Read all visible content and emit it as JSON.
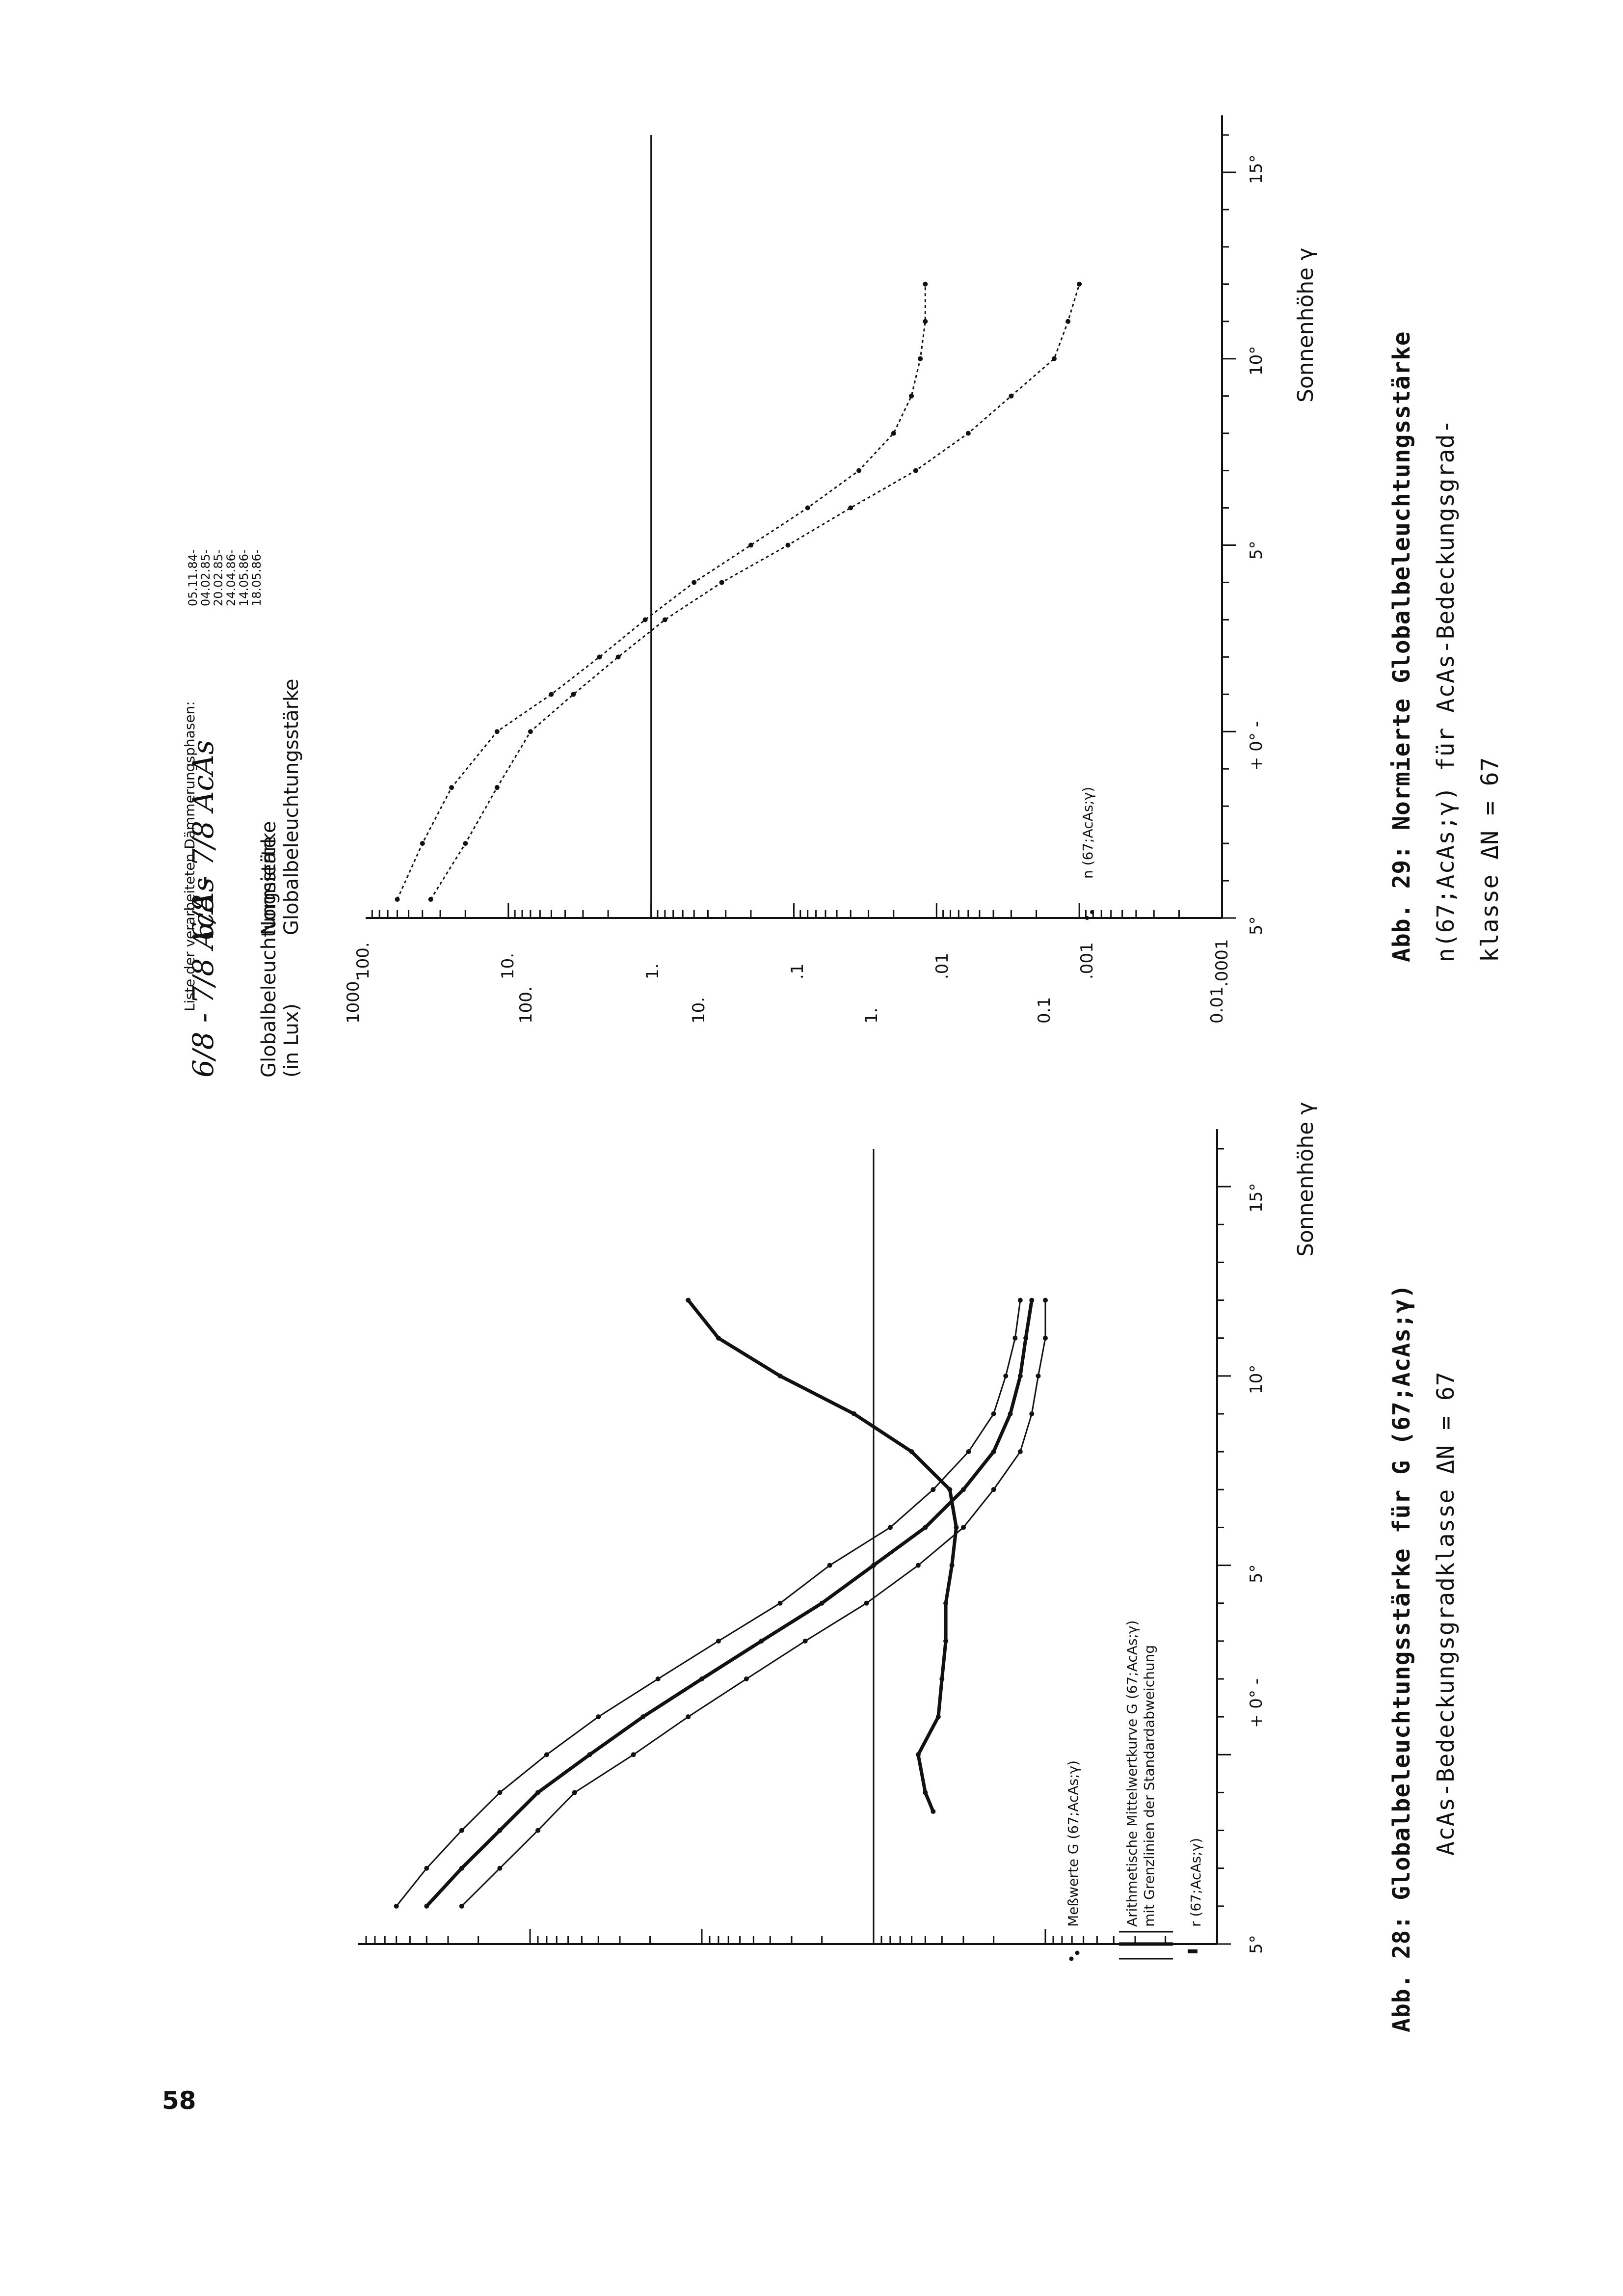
{
  "page_number": "58",
  "chart_data": [
    {
      "type": "line",
      "header": "6/8 - 7/8 AcAs",
      "ylabel_lines": [
        "Globalbeleuchtungsstärke",
        "(in Lux)"
      ],
      "xlabel": "Sonnenhöhe γ",
      "yscale": "log",
      "ylim": [
        0.01,
        1000
      ],
      "yticks": [
        "1000.",
        "100.",
        "10.",
        "1.",
        "0.1",
        "0.01"
      ],
      "xlim": [
        -5,
        16
      ],
      "xticks": [
        "5°",
        "+ 0° -",
        "5°",
        "10°",
        "15°"
      ],
      "reference_line_y": 1,
      "list_title": "Liste der verarbeiteten Dämmerungsphasen:",
      "list_dates": [
        "05.11.84-",
        "04.02.85-",
        "20.02.85-",
        "24.04.86-",
        "14.05.86-",
        "18.05.86-"
      ],
      "legend": [
        {
          "symbol": "dots",
          "text": "Meßwerte G (67;AcAs;γ)"
        },
        {
          "symbol": "lines",
          "text": "Arithmetische Mittelwertkurve G (67;AcAs;γ)"
        },
        {
          "symbol": "",
          "text": "mit Grenzlinien der Standardabweichung"
        },
        {
          "symbol": "thick",
          "text": "r (67;AcAs;γ)"
        }
      ],
      "series": [
        {
          "name": "mean",
          "x": [
            -4,
            -3,
            -2,
            -1,
            0,
            1,
            2,
            3,
            4,
            5,
            6,
            7,
            8,
            9,
            10,
            11,
            12
          ],
          "y": [
            400,
            250,
            150,
            90,
            45,
            22,
            10,
            4.5,
            2,
            1,
            0.5,
            0.3,
            0.2,
            0.16,
            0.14,
            0.13,
            0.12
          ]
        },
        {
          "name": "upper",
          "x": [
            -4,
            -3,
            -2,
            -1,
            0,
            1,
            2,
            3,
            4,
            5,
            6,
            7,
            8,
            9,
            10,
            11,
            12
          ],
          "y": [
            600,
            400,
            250,
            150,
            80,
            40,
            18,
            8,
            3.5,
            1.8,
            0.8,
            0.45,
            0.28,
            0.2,
            0.17,
            0.15,
            0.14
          ]
        },
        {
          "name": "lower",
          "x": [
            -4,
            -3,
            -2,
            -1,
            0,
            1,
            2,
            3,
            4,
            5,
            6,
            7,
            8,
            9,
            10,
            11,
            12
          ],
          "y": [
            250,
            150,
            90,
            55,
            25,
            12,
            5.5,
            2.5,
            1.1,
            0.55,
            0.3,
            0.2,
            0.14,
            0.12,
            0.11,
            0.1,
            0.1
          ]
        },
        {
          "name": "r",
          "x": [
            -1.5,
            -1,
            0,
            1,
            2,
            3,
            4,
            5,
            6,
            7,
            8,
            9,
            10,
            11,
            12
          ],
          "y": [
            0.45,
            0.5,
            0.55,
            0.42,
            0.4,
            0.38,
            0.38,
            0.35,
            0.33,
            0.36,
            0.6,
            1.3,
            3.5,
            8,
            12
          ]
        }
      ],
      "caption_line1": "Abb. 28: Globalbeleuchtungsstärke für G (67;AcAs;γ)",
      "caption_line2": "AcAs-Bedeckungsgradklasse ΔN = 67"
    },
    {
      "type": "line",
      "header": "6/8 - 7/8 AcAs",
      "ylabel_lines": [
        "Normierte",
        "Globalbeleuchtungsstärke"
      ],
      "xlabel": "Sonnenhöhe γ",
      "yscale": "log",
      "ylim": [
        0.0001,
        100
      ],
      "yticks": [
        "100.",
        "10.",
        "1.",
        ".1",
        ".01",
        ".001",
        ".0001"
      ],
      "xlim": [
        -5,
        16
      ],
      "xticks": [
        "5°",
        "+ 0° -",
        "5°",
        "10°",
        "15°"
      ],
      "reference_line_y": 1,
      "legend": [
        {
          "symbol": "dots",
          "text": "n (67;AcAs;γ)"
        }
      ],
      "series": [
        {
          "name": "n_upper",
          "x": [
            -4.5,
            -3,
            -1.5,
            0,
            1,
            2,
            3,
            4,
            5,
            6,
            7,
            8,
            9,
            10,
            11,
            12
          ],
          "y": [
            60,
            40,
            25,
            12,
            5,
            2.3,
            1.1,
            0.5,
            0.2,
            0.08,
            0.035,
            0.02,
            0.015,
            0.013,
            0.012,
            0.012
          ]
        },
        {
          "name": "n_lower",
          "x": [
            -4.5,
            -3,
            -1.5,
            0,
            1,
            2,
            3,
            4,
            5,
            6,
            7,
            8,
            9,
            10,
            11,
            12
          ],
          "y": [
            35,
            20,
            12,
            7,
            3.5,
            1.7,
            0.8,
            0.32,
            0.11,
            0.04,
            0.014,
            0.006,
            0.003,
            0.0015,
            0.0012,
            0.001
          ]
        }
      ],
      "caption_line1": "Abb. 29: Normierte Globalbeleuchtungsstärke",
      "caption_line2": "n(67;AcAs;γ) für AcAs-Bedeckungsgrad-",
      "caption_line3": "klasse ΔN = 67"
    }
  ]
}
